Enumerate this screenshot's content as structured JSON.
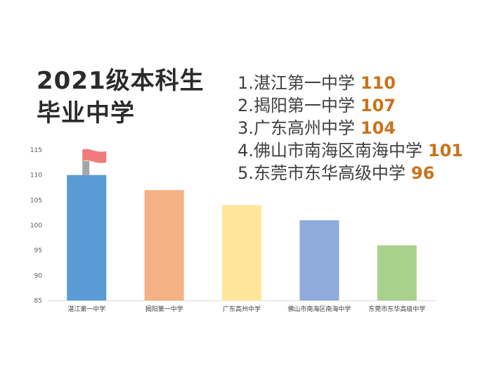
{
  "title_lines": [
    "2021级本科生",
    "毕业中学"
  ],
  "ranking": [
    {
      "label": "1.湛江第一中学",
      "value": "110"
    },
    {
      "label": "2.揭阳第一中学",
      "value": "107"
    },
    {
      "label": "3.广东高州中学",
      "value": "104"
    },
    {
      "label": "4.佛山市南海区南海中学",
      "value": "101"
    },
    {
      "label": "5.东莞市东华高级中学",
      "value": "96"
    }
  ],
  "colors": {
    "title": "#2b2b2b",
    "value_text": "#c9731a",
    "flag": "#f07b7b",
    "flag_pole": "#a6a6a6"
  },
  "chart_data": {
    "type": "bar",
    "categories": [
      "湛江第一中学",
      "揭阳第一中学",
      "广东高州中学",
      "佛山市南海区南海中学",
      "东莞市东华高级中学"
    ],
    "values": [
      110,
      107,
      104,
      101,
      96
    ],
    "bar_colors": [
      "#5b9bd5",
      "#f4b183",
      "#ffe699",
      "#8faadc",
      "#a9d18e"
    ],
    "ylim": [
      85,
      115
    ],
    "yticks": [
      85,
      90,
      95,
      100,
      105,
      110,
      115
    ],
    "grid": false,
    "legend": "none",
    "title": "",
    "xlabel": "",
    "ylabel": ""
  }
}
